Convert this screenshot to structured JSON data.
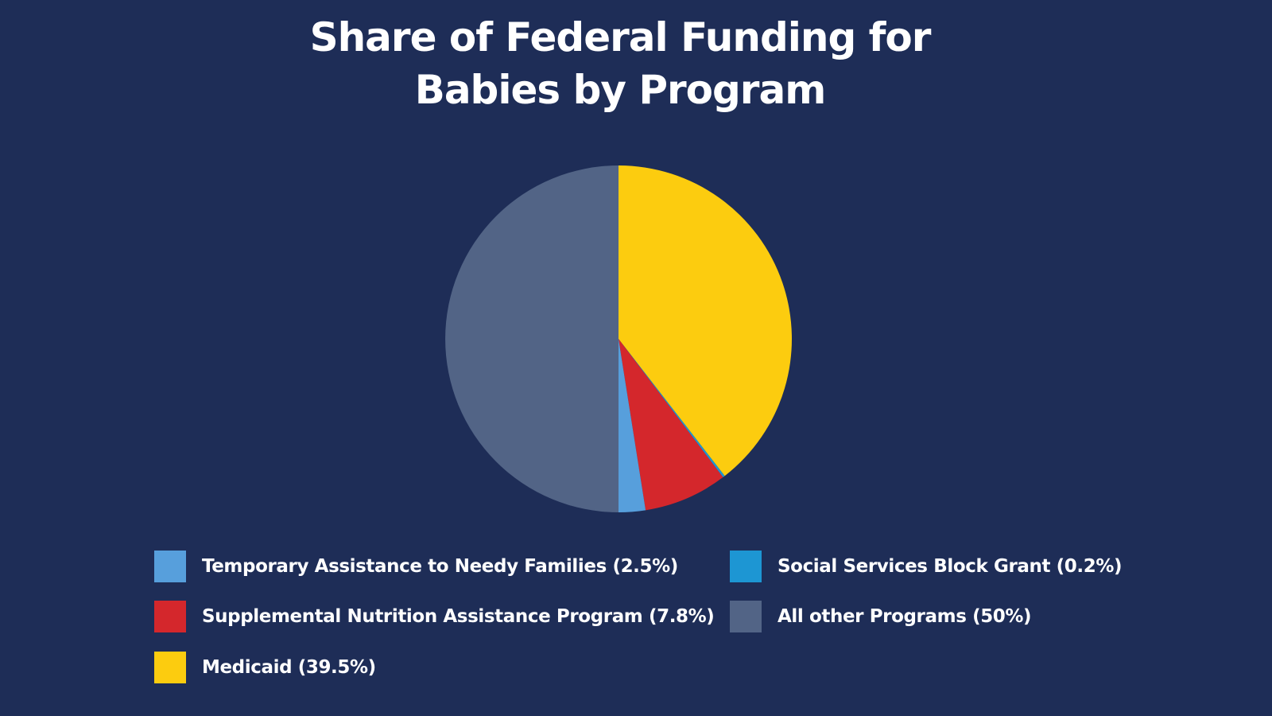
{
  "chart_data": {
    "type": "pie",
    "title_lines": [
      "Share of Federal Funding for",
      "Babies by Program"
    ],
    "slices": [
      {
        "label": "Medicaid (39.5%)",
        "name": "Medicaid",
        "value": 39.5,
        "color": "#fccc0f"
      },
      {
        "label": "Social Services Block Grant (0.2%)",
        "name": "Social Services Block Grant",
        "value": 0.2,
        "color": "#1d96d3"
      },
      {
        "label": "Supplemental Nutrition Assistance Program (7.8%)",
        "name": "Supplemental Nutrition Assistance Program",
        "value": 7.8,
        "color": "#d4272c"
      },
      {
        "label": "Temporary Assistance to Needy Families (2.5%)",
        "name": "Temporary Assistance to Needy Families",
        "value": 2.5,
        "color": "#579fdc"
      },
      {
        "label": "All other Programs (50%)",
        "name": "All other Programs",
        "value": 50,
        "color": "#526486"
      }
    ],
    "legend_position": "bottom"
  }
}
